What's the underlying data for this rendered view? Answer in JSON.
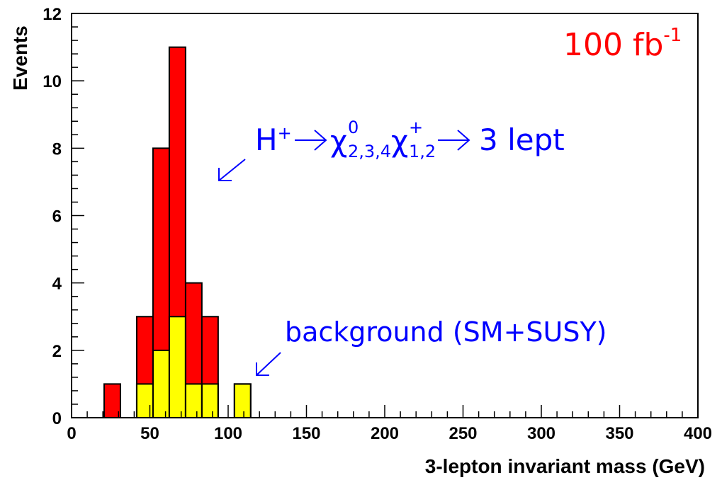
{
  "chart_data": {
    "type": "bar",
    "xlabel": "3-lepton invariant mass (GeV)",
    "ylabel": "Events",
    "xlim": [
      0,
      400
    ],
    "ylim": [
      0,
      12
    ],
    "x_ticks": [
      0,
      50,
      100,
      150,
      200,
      250,
      300,
      350,
      400
    ],
    "y_ticks": [
      0,
      2,
      4,
      6,
      8,
      10,
      12
    ],
    "bin_width": 10.4,
    "bin_edges": [
      20.8,
      31.2,
      41.6,
      52.0,
      62.4,
      72.8,
      83.2,
      93.6,
      104.0,
      114.4,
      124.8
    ],
    "series": [
      {
        "role": "total",
        "color": "#ff0000",
        "values": [
          1,
          0,
          3,
          8,
          11,
          4,
          3,
          0,
          1,
          0
        ]
      },
      {
        "role": "background",
        "color": "#ffff00",
        "values": [
          0,
          0,
          1,
          2,
          3,
          1,
          1,
          0,
          1,
          0
        ]
      }
    ],
    "annotations": {
      "luminosity": {
        "value": "100 fb",
        "exponent": "-1",
        "color": "#ff0000"
      },
      "signal_label": {
        "color": "#0000ff",
        "H": "H",
        "H_sup": "+",
        "chi": "χ",
        "chi1_sup": "0",
        "chi1_sub": "2,3,4",
        "chi2_sup": "+",
        "chi2_sub": "1,2",
        "tail": "3 lept"
      },
      "background_label": {
        "text": "background (SM+SUSY)",
        "color": "#0000ff"
      }
    }
  }
}
